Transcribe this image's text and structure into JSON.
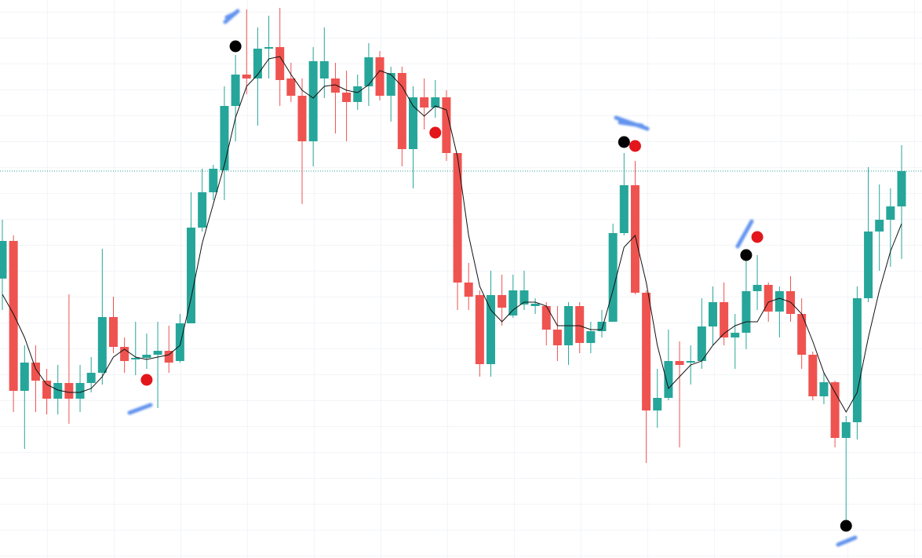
{
  "chart_data": {
    "type": "candlestick",
    "ylim": [
      0,
      711
    ],
    "up_color": "#26a69a",
    "down_color": "#ef5350",
    "ma_color": "#111111",
    "price_line_color": "#26a69a",
    "open": [
      356,
      404,
      213,
      249,
      226,
      203,
      223,
      203,
      223,
      236,
      307,
      269,
      253,
      255,
      259,
      264,
      251,
      299,
      421,
      466,
      494,
      576,
      616,
      611,
      649,
      651,
      611,
      589,
      531,
      611,
      611,
      593,
      581,
      601,
      638,
      589,
      618,
      521,
      587,
      574,
      587,
      516,
      351,
      335,
      247,
      335,
      309,
      323,
      321,
      321,
      291,
      271,
      321,
      274,
      289,
      301,
      414,
      475,
      338,
      188,
      204,
      251,
      249,
      251,
      295,
      326,
      281,
      287,
      340,
      348,
      314,
      340,
      311,
      259,
      206,
      224,
      153,
      173,
      331,
      416,
      431,
      448
    ],
    "high": [
      431,
      411,
      271,
      271,
      241,
      246,
      336,
      246,
      256,
      394,
      333,
      281,
      301,
      286,
      301,
      296,
      311,
      466,
      496,
      501,
      601,
      641,
      699,
      676,
      691,
      701,
      631,
      611,
      651,
      676,
      631,
      621,
      616,
      656,
      646,
      626,
      626,
      601,
      611,
      609,
      596,
      516,
      376,
      341,
      366,
      361,
      361,
      366,
      331,
      326,
      321,
      326,
      326,
      301,
      316,
      426,
      516,
      506,
      341,
      241,
      291,
      276,
      271,
      331,
      346,
      351,
      311,
      381,
      386,
      351,
      346,
      359,
      331,
      263,
      236,
      226,
      181,
      346,
      498,
      476,
      471,
      526
    ],
    "low": [
      316,
      186,
      139,
      186,
      183,
      183,
      171,
      186,
      211,
      221,
      261,
      236,
      233,
      241,
      191,
      236,
      249,
      299,
      416,
      456,
      456,
      531,
      591,
      551,
      611,
      576,
      581,
      451,
      499,
      586,
      541,
      531,
      571,
      576,
      583,
      556,
      499,
      471,
      546,
      561,
      506,
      316,
      316,
      231,
      231,
      296,
      306,
      316,
      311,
      271,
      251,
      246,
      261,
      261,
      281,
      301,
      411,
      336,
      121,
      166,
      201,
      141,
      221,
      241,
      271,
      271,
      241,
      266,
      316,
      301,
      281,
      301,
      241,
      201,
      196,
      141,
      39,
      151,
      326,
      366,
      371,
      381
    ],
    "close": [
      404,
      213,
      249,
      226,
      203,
      223,
      203,
      223,
      236,
      307,
      269,
      251,
      255,
      259,
      264,
      249,
      299,
      421,
      466,
      496,
      576,
      616,
      611,
      649,
      651,
      609,
      589,
      531,
      633,
      633,
      593,
      581,
      601,
      638,
      589,
      618,
      521,
      587,
      574,
      587,
      516,
      351,
      333,
      247,
      335,
      319,
      341,
      341,
      324,
      291,
      271,
      321,
      274,
      289,
      301,
      414,
      475,
      338,
      188,
      204,
      251,
      246,
      251,
      295,
      326,
      281,
      287,
      340,
      348,
      314,
      340,
      311,
      259,
      206,
      224,
      153,
      173,
      331,
      416,
      431,
      448,
      493
    ],
    "ma": [
      336,
      311,
      281,
      241,
      221,
      214,
      211,
      211,
      216,
      231,
      256,
      266,
      256,
      253,
      256,
      259,
      271,
      331,
      401,
      451,
      501,
      561,
      601,
      616,
      636,
      639,
      616,
      596,
      586,
      601,
      603,
      596,
      593,
      603,
      621,
      616,
      601,
      576,
      563,
      576,
      571,
      511,
      411,
      346,
      316,
      301,
      316,
      326,
      326,
      321,
      296,
      296,
      296,
      291,
      291,
      341,
      396,
      411,
      351,
      271,
      216,
      231,
      246,
      251,
      271,
      286,
      296,
      301,
      301,
      326,
      331,
      326,
      311,
      276,
      236,
      211,
      186,
      211,
      281,
      341,
      391,
      426
    ],
    "price_line": 493,
    "markers": [
      {
        "index": 21,
        "value": 652,
        "color": "#000000"
      },
      {
        "index": 13,
        "value": 227,
        "color": "#e3161b"
      },
      {
        "index": 39,
        "value": 542,
        "color": "#e3161b"
      },
      {
        "index": 56,
        "value": 530,
        "color": "#000000"
      },
      {
        "index": 57,
        "value": 525,
        "color": "#e3161b"
      },
      {
        "index": 67,
        "value": 386,
        "color": "#000000"
      },
      {
        "index": 68,
        "value": 409,
        "color": "#e3161b"
      },
      {
        "index": 76,
        "value": 41,
        "color": "#000000"
      }
    ]
  }
}
